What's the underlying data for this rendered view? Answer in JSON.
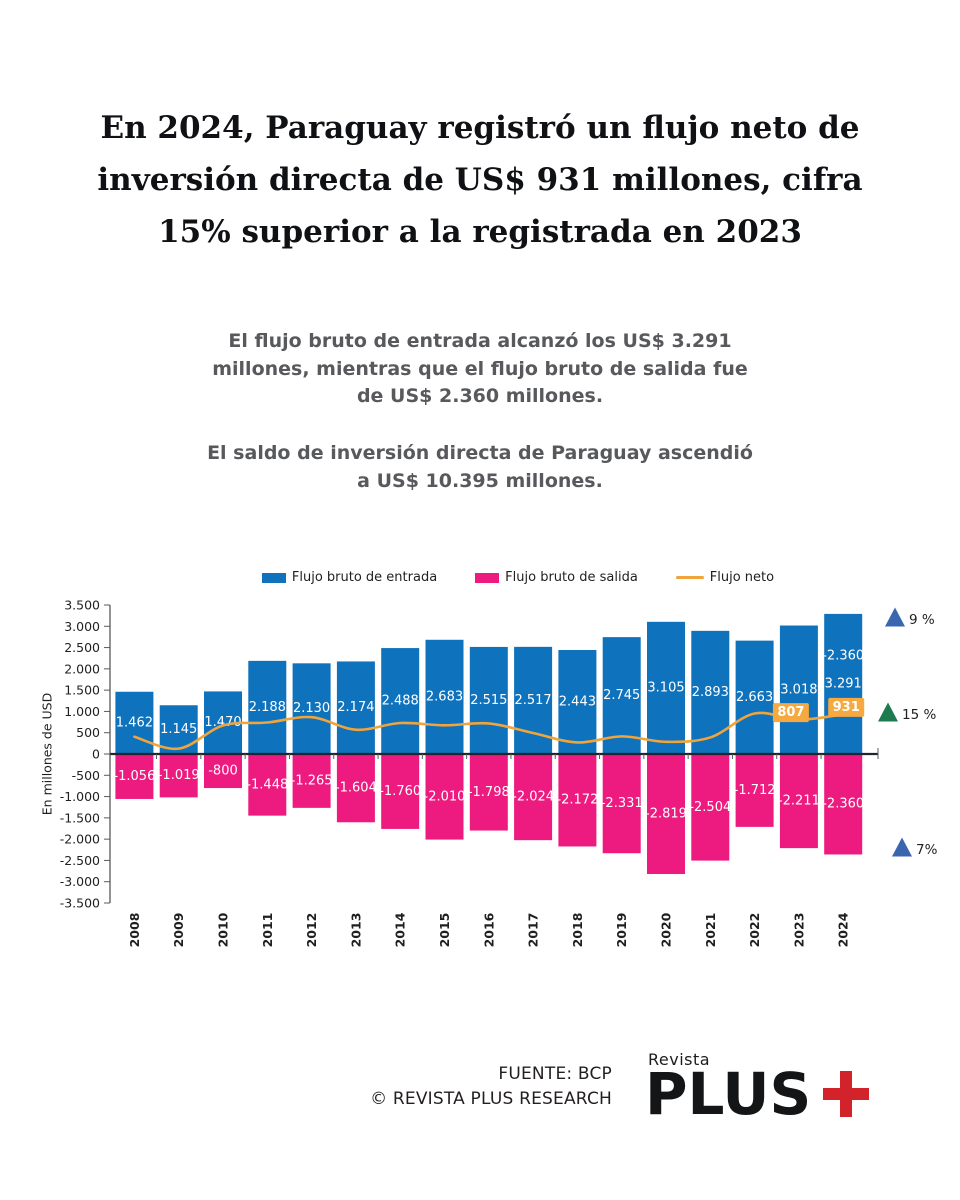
{
  "title": {
    "lines": [
      "En 2024, Paraguay registró un flujo neto de",
      "inversión directa de US$ 931 millones, cifra",
      "15% superior a la registrada en 2023"
    ]
  },
  "subtitle": {
    "para1_lines": [
      "El flujo bruto de entrada alcanzó los US$ 3.291",
      "millones, mientras que el flujo bruto de salida fue",
      "de US$ 2.360 millones."
    ],
    "para2_lines": [
      "El saldo de inversión directa de Paraguay ascendió",
      "a US$ 10.395 millones."
    ]
  },
  "colors": {
    "entrada_blue": "#0e72bc",
    "salida_pink": "#ed1a7f",
    "neto_orange": "#efa43c",
    "neto_label_box": "#f5a93e",
    "triangle_blue": "#3a66b0",
    "triangle_green": "#1e7b4e",
    "zero_line": "#20242e",
    "axis_gray": "#58595b",
    "logo_red": "#d2232a"
  },
  "chart_data": {
    "type": "bar",
    "subtype": "combo-bar-line",
    "title": "",
    "xlabel": "",
    "ylabel": "En millones de USD",
    "ylim": [
      -3500,
      3500
    ],
    "ytick_step": 500,
    "grid": false,
    "legend_position": "top",
    "label_format": "thousands-dot",
    "categories": [
      "2008",
      "2009",
      "2010",
      "2011",
      "2012",
      "2013",
      "2014",
      "2015",
      "2016",
      "2017",
      "2018",
      "2019",
      "2020",
      "2021",
      "2022",
      "2023",
      "2024"
    ],
    "series": [
      {
        "name": "Flujo bruto de entrada",
        "type": "bar",
        "color": "#0e72bc",
        "values": [
          1462,
          1145,
          1470,
          2188,
          2130,
          2174,
          2488,
          2683,
          2515,
          2517,
          2443,
          2745,
          3105,
          2893,
          2663,
          3018,
          3291
        ]
      },
      {
        "name": "Flujo bruto de salida",
        "type": "bar",
        "color": "#ed1a7f",
        "values": [
          -1056,
          -1019,
          -800,
          -1448,
          -1265,
          -1604,
          -1760,
          -2010,
          -1798,
          -2024,
          -2172,
          -2331,
          -2819,
          -2504,
          -1712,
          -2211,
          -2360
        ]
      },
      {
        "name": "Flujo neto",
        "type": "line",
        "color": "#efa43c",
        "values": [
          406,
          126,
          670,
          740,
          865,
          570,
          728,
          673,
          717,
          493,
          271,
          414,
          286,
          389,
          951,
          807,
          931
        ],
        "labeled_points": [
          {
            "category": "2023",
            "value": 807
          },
          {
            "category": "2024",
            "value": 931
          }
        ]
      }
    ],
    "duplicate_salida_label_in_entrada_bar": [
      "2024"
    ],
    "annotations": [
      {
        "label": "9 %",
        "shape": "triangle-up",
        "color": "#3a66b0",
        "x": 895,
        "y": 617
      },
      {
        "label": "15 %",
        "shape": "triangle-up",
        "color": "#1e7b4e",
        "x": 888,
        "y": 712
      },
      {
        "label": "7%",
        "shape": "triangle-up",
        "color": "#3a66b0",
        "x": 902,
        "y": 847
      }
    ]
  },
  "footer": {
    "source_line1": "FUENTE: BCP",
    "source_line2": "© REVISTA PLUS RESEARCH",
    "logo": {
      "top": "Revista",
      "main": "PLUS",
      "plus_icon": "red-cross"
    }
  }
}
